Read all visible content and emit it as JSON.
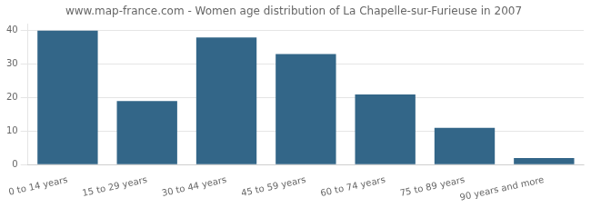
{
  "chart_data": {
    "type": "bar",
    "title": "www.map-france.com - Women age distribution of La Chapelle-sur-Furieuse in 2007",
    "categories": [
      "0 to 14 years",
      "15 to 29 years",
      "30 to 44 years",
      "45 to 59 years",
      "60 to 74 years",
      "75 to 89 years",
      "90 years and more"
    ],
    "values": [
      40,
      19,
      38,
      33,
      21,
      11,
      2
    ],
    "color": "#336688",
    "ylim": [
      0,
      42
    ],
    "yticks": [
      0,
      10,
      20,
      30,
      40
    ],
    "grid": true
  }
}
